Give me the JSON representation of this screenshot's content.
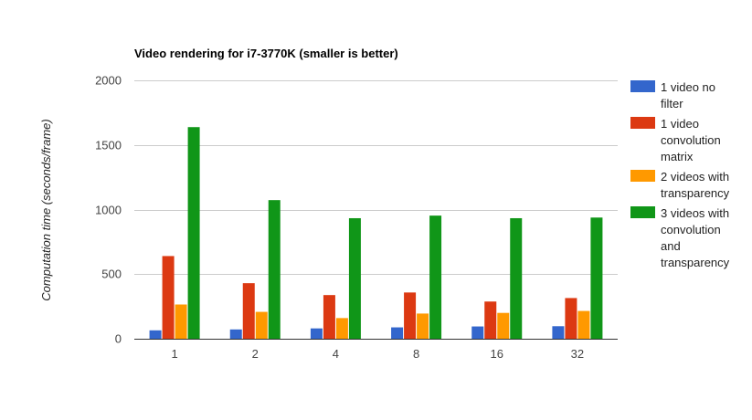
{
  "chart_data": {
    "type": "bar",
    "title": "Video rendering for i7-3770K (smaller is better)",
    "xlabel": "",
    "ylabel": "Computation time (seconds/frame)",
    "ylim": [
      0,
      2000
    ],
    "yticks": [
      "0",
      "500",
      "1000",
      "1500",
      "2000"
    ],
    "ytick_values": [
      0,
      500,
      1000,
      1500,
      2000
    ],
    "grid": true,
    "legend_position": "right",
    "categories": [
      "1",
      "2",
      "4",
      "8",
      "16",
      "32"
    ],
    "series": [
      {
        "name": "1 video no filter",
        "legend_lines": [
          "1 video no",
          "filter"
        ],
        "color": "#3366cc",
        "values": [
          65,
          72,
          80,
          88,
          95,
          97
        ]
      },
      {
        "name": "1 video convolution matrix",
        "legend_lines": [
          "1 video",
          "convolution",
          "matrix"
        ],
        "color": "#dc3912",
        "values": [
          640,
          430,
          338,
          358,
          288,
          315
        ]
      },
      {
        "name": "2 videos with transparency",
        "legend_lines": [
          "2 videos with",
          "transparency"
        ],
        "color": "#ff9900",
        "values": [
          265,
          208,
          160,
          195,
          200,
          215
        ]
      },
      {
        "name": "3 videos with convolution and transparency",
        "legend_lines": [
          "3 videos with",
          "convolution",
          "and",
          "transparency"
        ],
        "color": "#109618",
        "values": [
          1638,
          1073,
          933,
          953,
          933,
          938
        ]
      }
    ]
  }
}
